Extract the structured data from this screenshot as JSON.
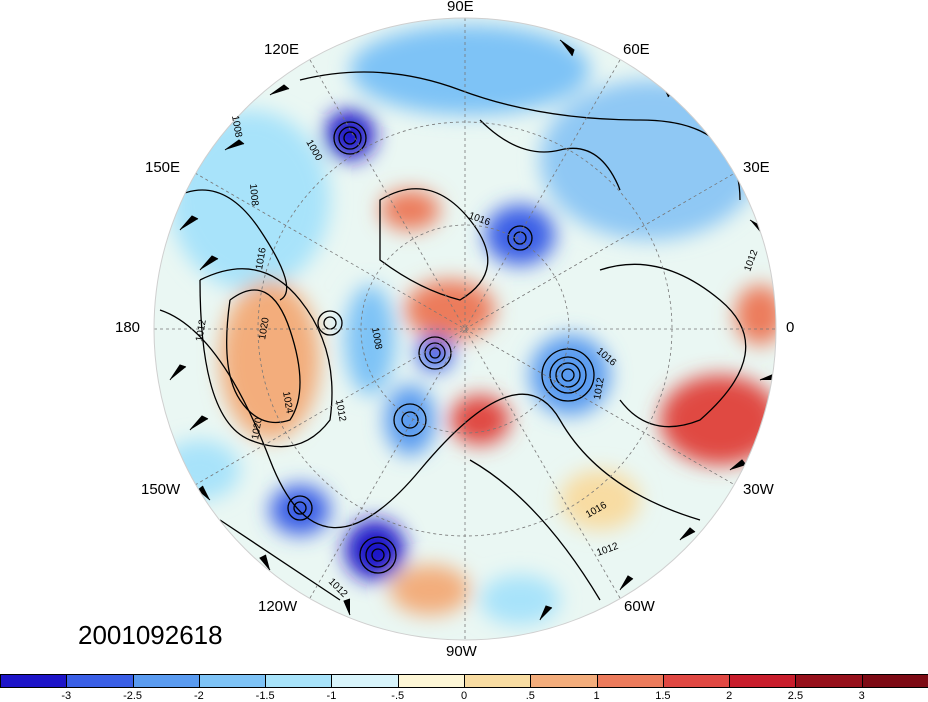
{
  "timestamp": "2001092618",
  "longitude_labels": {
    "n90e": "90E",
    "n120e": "120E",
    "n60e": "60E",
    "n150e": "150E",
    "n30e": "30E",
    "n180": "180",
    "n0": "0",
    "n150w": "150W",
    "n30w": "30W",
    "n120w": "120W",
    "n60w": "60W",
    "n90w": "90W"
  },
  "isobar_labels": [
    "1008",
    "1008",
    "1012",
    "1016",
    "1020",
    "1024",
    "1020",
    "1012",
    "1016",
    "1012",
    "1016",
    "1016",
    "1012",
    "1012",
    "1012",
    "1008",
    "1000"
  ],
  "colorbar": {
    "colors": [
      "#1d14c8",
      "#3a5fe6",
      "#5a9bf0",
      "#7ec3f6",
      "#a8e3fa",
      "#d8f4fb",
      "#fdf6d6",
      "#f8dca2",
      "#f3ad7c",
      "#ec7b5c",
      "#e04843",
      "#c81d2c",
      "#96101b"
    ],
    "labels": [
      "-3",
      "-2.5",
      "-2",
      "-1.5",
      "-1",
      "-.5",
      "0",
      ".5",
      "1",
      "1.5",
      "2",
      "2.5",
      "3"
    ]
  }
}
